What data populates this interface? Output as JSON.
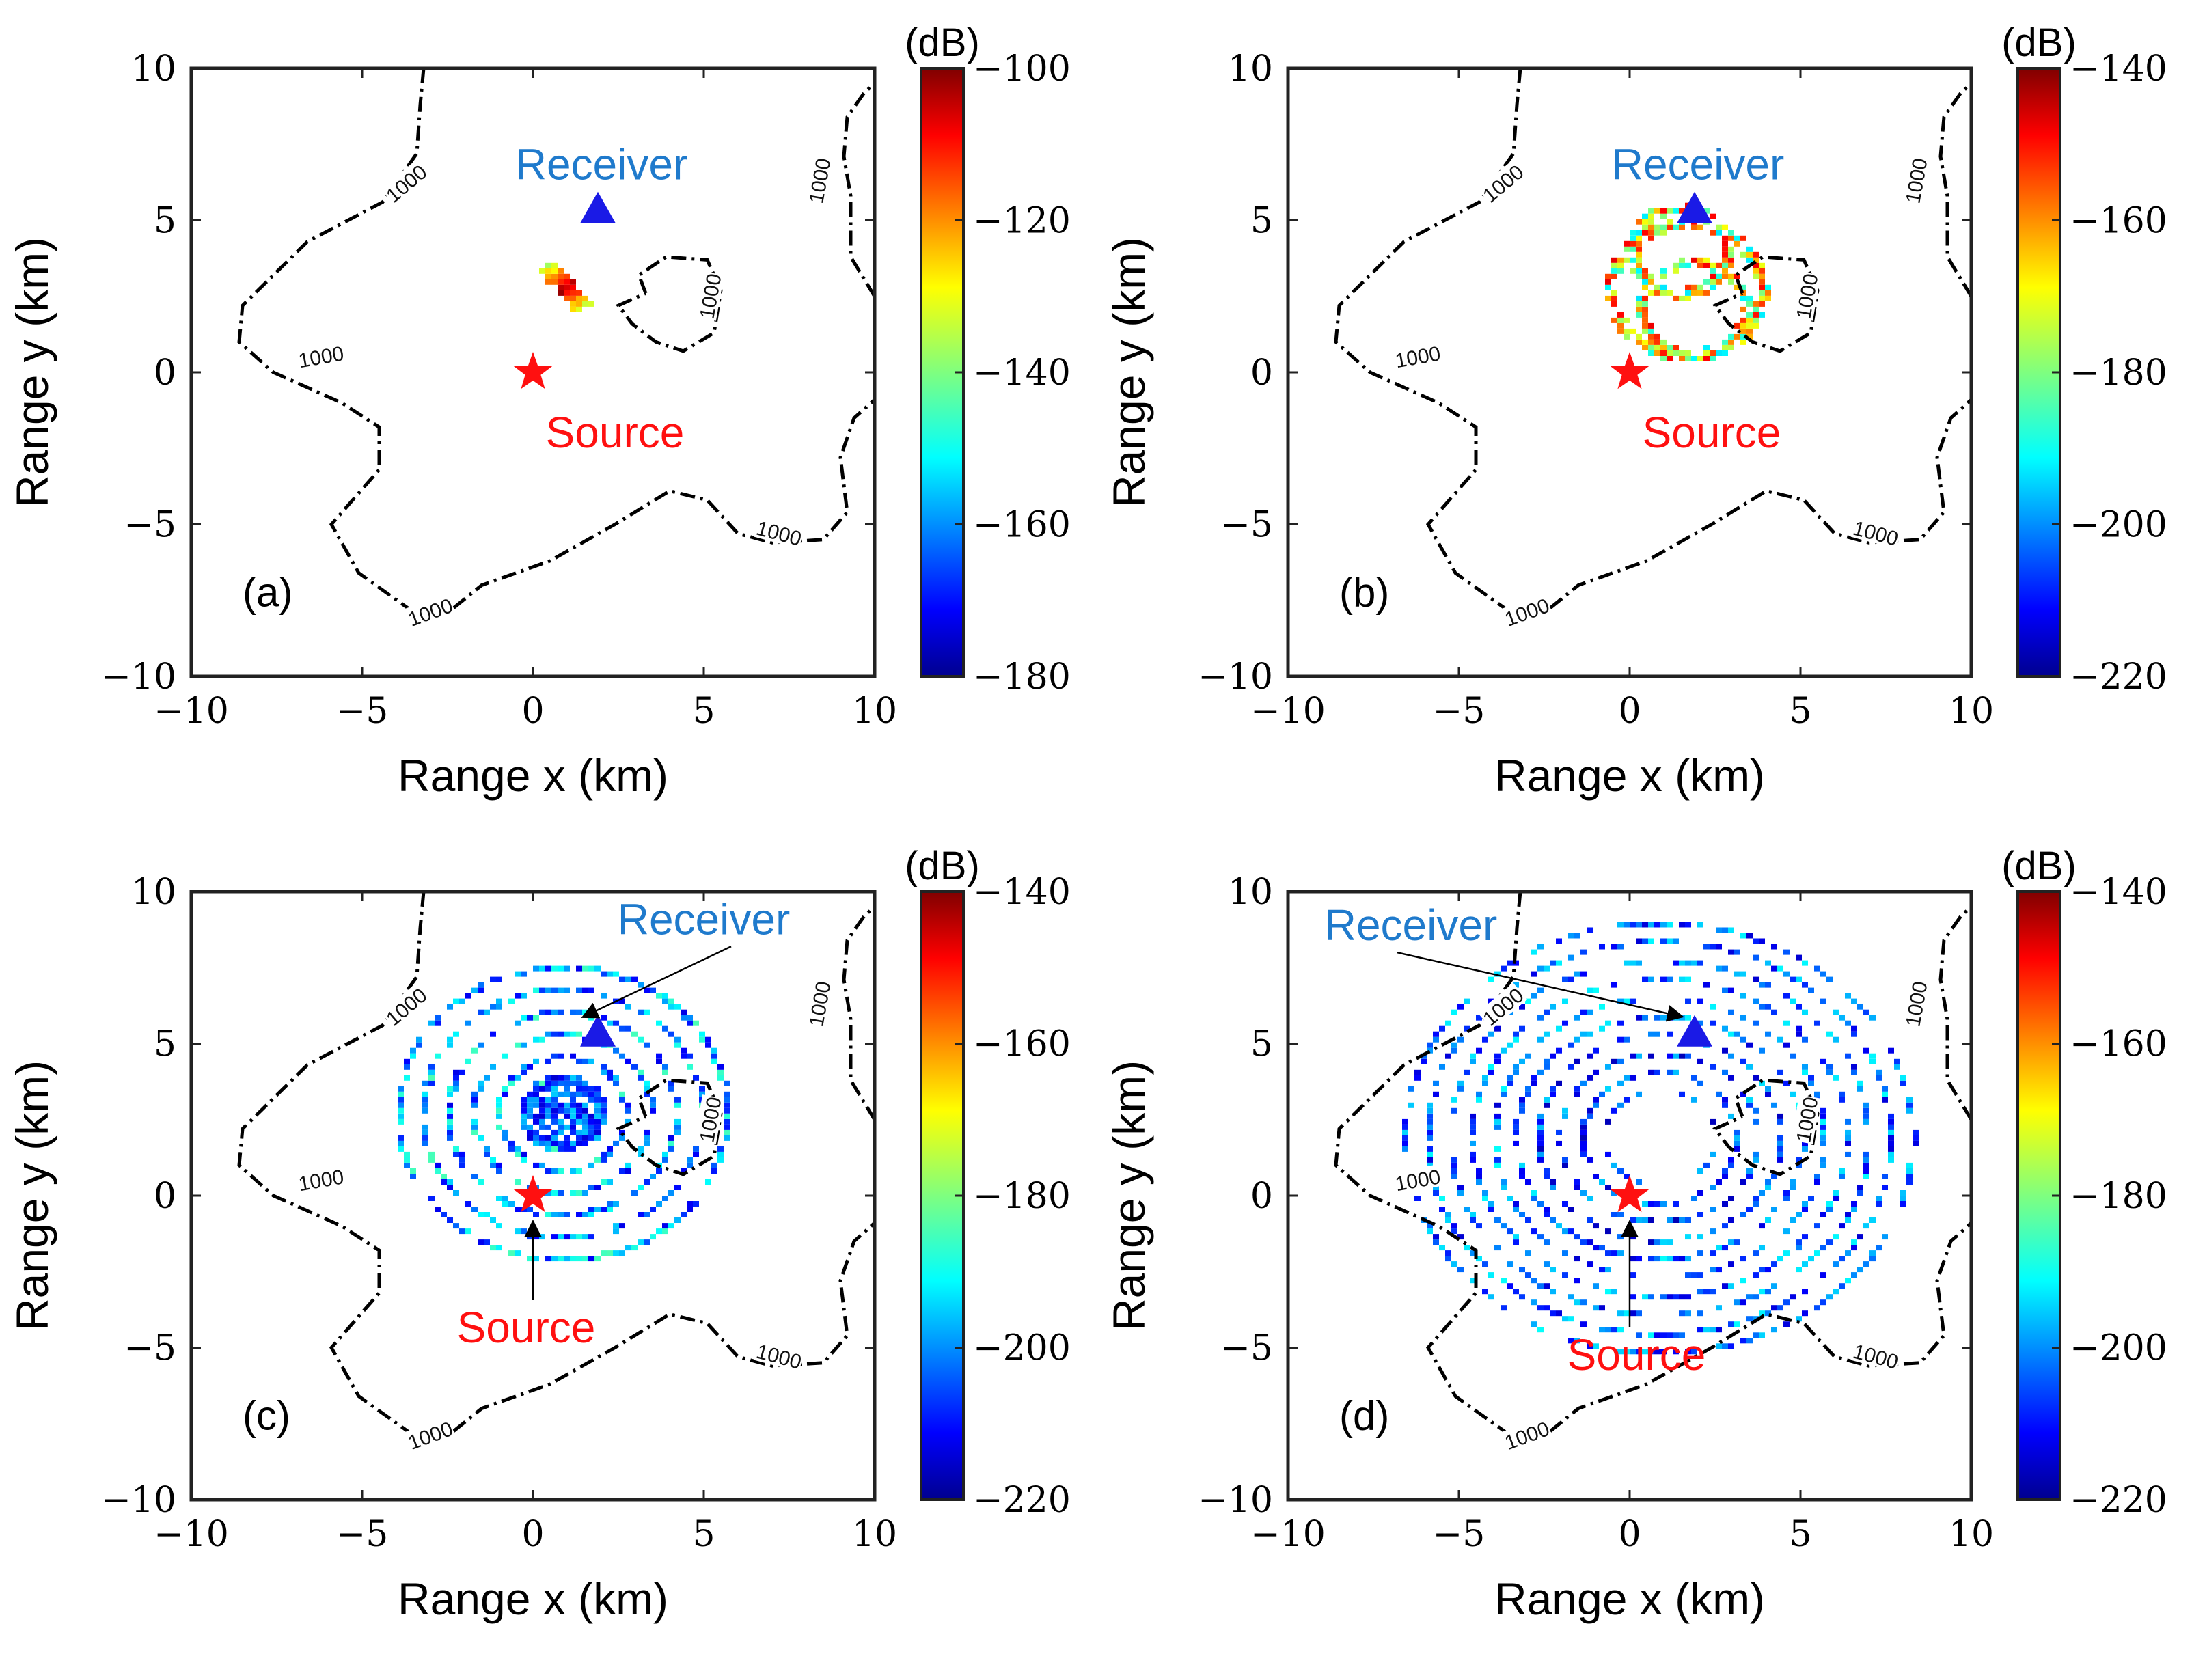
{
  "colors": {
    "source": "#ff1010",
    "receiver_marker": "#1a1ae6",
    "receiver_text": "#1f7acc",
    "contour": "#000000",
    "colormap": "jet"
  },
  "chart_data": [
    {
      "type": "heatmap",
      "panel_label": "(a)",
      "xlabel": "Range x (km)",
      "ylabel": "Range y (km)",
      "xlim": [
        -10,
        10
      ],
      "ylim": [
        -10,
        10
      ],
      "xticks": [
        "−10",
        "−5",
        "0",
        "5",
        "10"
      ],
      "yticks": [
        "−10",
        "−5",
        "0",
        "5",
        "10"
      ],
      "colorbar": {
        "unit": "(dB)",
        "range": [
          -180,
          -100
        ],
        "ticks": [
          "−100",
          "−120",
          "−140",
          "−160",
          "−180"
        ]
      },
      "contour_label": "1000",
      "source": {
        "label": "Source",
        "x": 0,
        "y": 0
      },
      "receiver": {
        "label": "Receiver",
        "x": 1.9,
        "y": 5.4
      },
      "pattern": "streak",
      "arrows": false
    },
    {
      "type": "heatmap",
      "panel_label": "(b)",
      "xlabel": "Range x (km)",
      "ylabel": "Range y (km)",
      "xlim": [
        -10,
        10
      ],
      "ylim": [
        -10,
        10
      ],
      "xticks": [
        "−10",
        "−5",
        "0",
        "5",
        "10"
      ],
      "yticks": [
        "−10",
        "−5",
        "0",
        "5",
        "10"
      ],
      "colorbar": {
        "unit": "(dB)",
        "range": [
          -220,
          -140
        ],
        "ticks": [
          "−140",
          "−160",
          "−180",
          "−200",
          "−220"
        ]
      },
      "contour_label": "1000",
      "source": {
        "label": "Source",
        "x": 0,
        "y": 0
      },
      "receiver": {
        "label": "Receiver",
        "x": 1.9,
        "y": 5.4
      },
      "pattern": "loops",
      "arrows": false
    },
    {
      "type": "heatmap",
      "panel_label": "(c)",
      "xlabel": "Range x (km)",
      "ylabel": "Range y (km)",
      "xlim": [
        -10,
        10
      ],
      "ylim": [
        -10,
        10
      ],
      "xticks": [
        "−10",
        "−5",
        "0",
        "5",
        "10"
      ],
      "yticks": [
        "−10",
        "−5",
        "0",
        "5",
        "10"
      ],
      "colorbar": {
        "unit": "(dB)",
        "range": [
          -220,
          -140
        ],
        "ticks": [
          "−140",
          "−160",
          "−180",
          "−200",
          "−220"
        ]
      },
      "contour_label": "1000",
      "source": {
        "label": "Source",
        "x": 0,
        "y": 0
      },
      "receiver": {
        "label": "Receiver",
        "x": 1.9,
        "y": 5.4
      },
      "pattern": "rings-small",
      "arrows": true
    },
    {
      "type": "heatmap",
      "panel_label": "(d)",
      "xlabel": "Range x (km)",
      "ylabel": "Range y (km)",
      "xlim": [
        -10,
        10
      ],
      "ylim": [
        -10,
        10
      ],
      "xticks": [
        "−10",
        "−5",
        "0",
        "5",
        "10"
      ],
      "yticks": [
        "−10",
        "−5",
        "0",
        "5",
        "10"
      ],
      "colorbar": {
        "unit": "(dB)",
        "range": [
          -220,
          -140
        ],
        "ticks": [
          "−140",
          "−160",
          "−180",
          "−200",
          "−220"
        ]
      },
      "contour_label": "1000",
      "source": {
        "label": "Source",
        "x": 0,
        "y": 0
      },
      "receiver": {
        "label": "Receiver",
        "x": 1.9,
        "y": 5.4
      },
      "pattern": "rings-large",
      "arrows": true
    }
  ]
}
